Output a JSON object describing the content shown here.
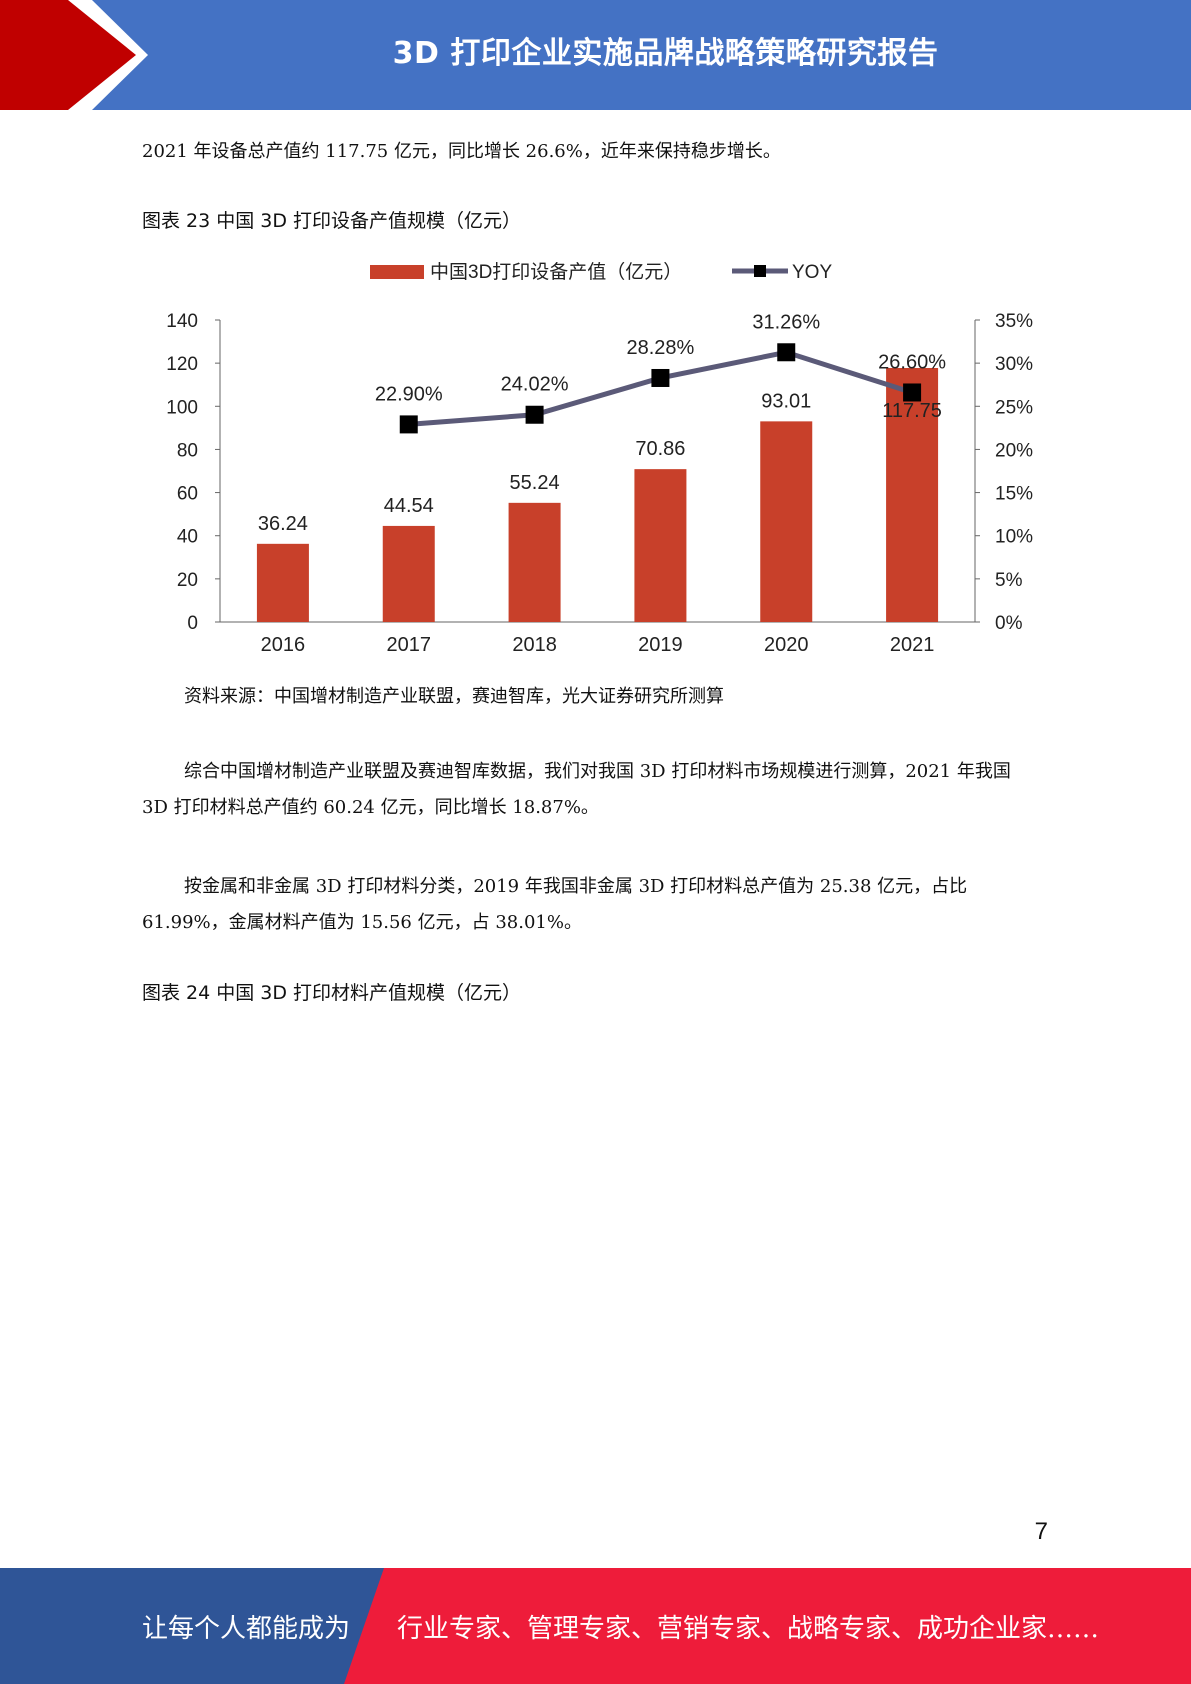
{
  "header": {
    "title": "3D 打印企业实施品牌战略策略研究报告"
  },
  "paragraphs": {
    "p1": "2021 年设备总产值约 117.75 亿元，同比增长 26.6%，近年来保持稳步增长。",
    "p2": "综合中国增材制造产业联盟及赛迪智库数据，我们对我国 3D 打印材料市场规模进行测算，2021 年我国 3D 打印材料总产值约 60.24 亿元，同比增长 18.87%。",
    "p3": "按金属和非金属 3D 打印材料分类，2019 年我国非金属 3D 打印材料总产值为 25.38 亿元，占比 61.99%，金属材料产值为 15.56 亿元，占 38.01%。"
  },
  "figure23": {
    "caption": "图表  23  中国 3D 打印设备产值规模（亿元）",
    "source": "资料来源：中国增材制造产业联盟，赛迪智库，光大证券研究所测算"
  },
  "figure24": {
    "caption": "图表  24  中国 3D 打印材料产值规模（亿元）"
  },
  "chart_data": {
    "type": "bar",
    "categories": [
      "2016",
      "2017",
      "2018",
      "2019",
      "2020",
      "2021"
    ],
    "series": [
      {
        "name": "中国3D打印设备产值（亿元）",
        "type": "bar",
        "axis": "left",
        "values": [
          36.24,
          44.54,
          55.24,
          70.86,
          93.01,
          117.75
        ],
        "labels": [
          "36.24",
          "44.54",
          "55.24",
          "70.86",
          "93.01",
          "117.75"
        ]
      },
      {
        "name": "YOY",
        "type": "line",
        "axis": "right",
        "values": [
          null,
          22.9,
          24.02,
          28.28,
          31.26,
          26.6
        ],
        "labels": [
          null,
          "22.90%",
          "24.02%",
          "28.28%",
          "31.26%",
          "26.60%"
        ]
      }
    ],
    "ylim_left": [
      0,
      140
    ],
    "yticks_left": [
      "0",
      "20",
      "40",
      "60",
      "80",
      "100",
      "120",
      "140"
    ],
    "ylim_right": [
      0,
      35
    ],
    "yticks_right": [
      "0%",
      "5%",
      "10%",
      "15%",
      "20%",
      "25%",
      "30%",
      "35%"
    ],
    "grid": false,
    "legend_position": "top-center",
    "colors": {
      "bar": "#c8402a",
      "line": "#5b5a78",
      "marker": "#000000"
    }
  },
  "page_number": "7",
  "footer": {
    "left": "让每个人都能成为",
    "right": "行业专家、管理专家、营销专家、战略专家、成功企业家……"
  }
}
